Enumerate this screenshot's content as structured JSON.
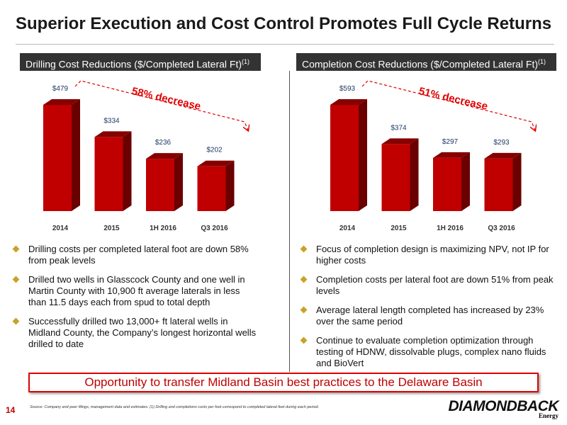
{
  "title": "Superior Execution and Cost Control Promotes Full Cycle Returns",
  "chart_data": [
    {
      "type": "bar",
      "title": "Drilling Cost Reductions ($/Completed Lateral Ft)",
      "title_note": "(1)",
      "categories": [
        "2014",
        "2015",
        "1H 2016",
        "Q3 2016"
      ],
      "values": [
        479,
        334,
        236,
        202
      ],
      "value_labels": [
        "$479",
        "$334",
        "$236",
        "$202"
      ],
      "annotation": "58% decrease",
      "color": "#c00000"
    },
    {
      "type": "bar",
      "title": "Completion Cost Reductions ($/Completed Lateral Ft)",
      "title_note": "(1)",
      "categories": [
        "2014",
        "2015",
        "1H 2016",
        "Q3 2016"
      ],
      "values": [
        593,
        374,
        297,
        293
      ],
      "value_labels": [
        "$593",
        "$374",
        "$297",
        "$293"
      ],
      "annotation": "51% decrease",
      "color": "#c00000"
    }
  ],
  "left_bullets": [
    "Drilling costs per completed lateral foot are down 58% from peak levels",
    "Drilled two wells in Glasscock County and one well in Martin County with 10,900 ft average laterals in less than 11.5 days each from spud to total depth",
    "Successfully drilled two 13,000+ ft lateral wells in Midland County, the Company’s longest horizontal wells drilled to date"
  ],
  "right_bullets": [
    "Focus of completion design is maximizing NPV, not IP for higher costs",
    "Completion costs per lateral foot are down 51% from peak levels",
    "Average lateral length completed has increased by 23% over the same period",
    "Continue to evaluate completion optimization through testing of HDNW, dissolvable plugs, complex nano fluids and BioVert"
  ],
  "callout": "Opportunity to transfer Midland Basin best practices to the Delaware Basin",
  "page_number": "14",
  "source": "Source: Company and peer filings, management data and estimates. (1) Drilling and completions costs per foot correspond to completed lateral feet during each period.",
  "logo": {
    "name": "DIAMONDBACK",
    "sub": "Energy"
  }
}
